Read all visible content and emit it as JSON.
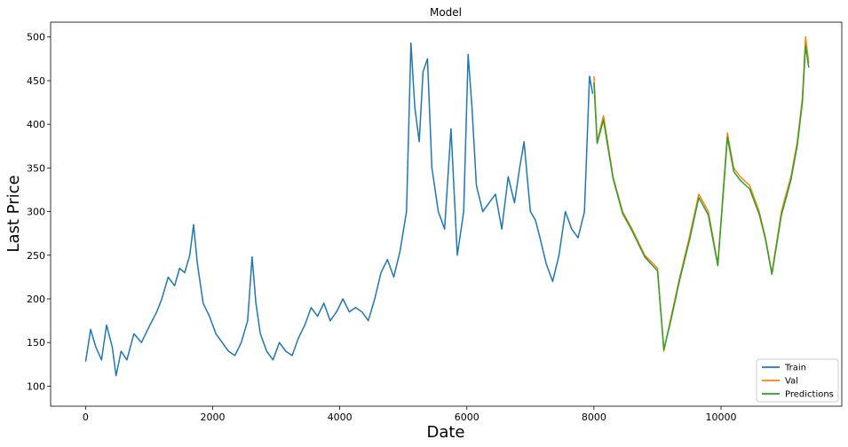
{
  "chart_data": {
    "type": "line",
    "title": "Model",
    "xlabel": "Date",
    "ylabel": "Last Price",
    "xlim": [
      -550,
      11900
    ],
    "ylim": [
      77,
      517
    ],
    "xticks": [
      0,
      2000,
      4000,
      6000,
      8000,
      10000
    ],
    "yticks": [
      100,
      150,
      200,
      250,
      300,
      350,
      400,
      450,
      500
    ],
    "grid": false,
    "legend_position": "lower-right",
    "series": [
      {
        "name": "Train",
        "color": "#1f77b4",
        "x": [
          0,
          80,
          160,
          250,
          330,
          420,
          480,
          560,
          650,
          760,
          880,
          1000,
          1120,
          1200,
          1300,
          1400,
          1480,
          1560,
          1640,
          1700,
          1760,
          1850,
          1950,
          2050,
          2150,
          2250,
          2350,
          2450,
          2550,
          2620,
          2680,
          2750,
          2850,
          2950,
          3050,
          3150,
          3250,
          3350,
          3450,
          3550,
          3650,
          3750,
          3850,
          3950,
          4050,
          4150,
          4250,
          4350,
          4450,
          4550,
          4650,
          4750,
          4850,
          4950,
          5050,
          5120,
          5180,
          5250,
          5310,
          5380,
          5450,
          5550,
          5650,
          5750,
          5850,
          5950,
          6020,
          6080,
          6150,
          6250,
          6350,
          6450,
          6550,
          6650,
          6750,
          6830,
          6900,
          6950,
          7000,
          7080,
          7150,
          7250,
          7350,
          7450,
          7550,
          7650,
          7750,
          7850,
          7930,
          7980
        ],
        "values": [
          128,
          165,
          145,
          130,
          170,
          145,
          112,
          140,
          130,
          160,
          150,
          168,
          185,
          200,
          225,
          215,
          235,
          230,
          250,
          285,
          240,
          195,
          180,
          160,
          150,
          140,
          135,
          150,
          175,
          248,
          195,
          160,
          140,
          130,
          150,
          140,
          135,
          155,
          170,
          190,
          180,
          195,
          175,
          185,
          200,
          185,
          190,
          185,
          175,
          200,
          230,
          245,
          225,
          255,
          300,
          493,
          420,
          380,
          460,
          475,
          350,
          300,
          280,
          395,
          250,
          300,
          480,
          420,
          330,
          300,
          310,
          320,
          280,
          340,
          310,
          350,
          380,
          340,
          300,
          290,
          270,
          240,
          220,
          250,
          300,
          280,
          270,
          300,
          455,
          435
        ]
      },
      {
        "name": "Val",
        "color": "#ff7f0e",
        "x": [
          8000,
          8050,
          8150,
          8300,
          8450,
          8600,
          8800,
          9000,
          9100,
          9200,
          9350,
          9500,
          9650,
          9800,
          9950,
          10100,
          10200,
          10300,
          10450,
          10600,
          10700,
          10800,
          10950,
          11100,
          11200,
          11280,
          11330,
          11380
        ],
        "values": [
          455,
          380,
          410,
          340,
          300,
          280,
          250,
          235,
          140,
          175,
          225,
          270,
          320,
          300,
          240,
          390,
          350,
          340,
          330,
          300,
          270,
          230,
          300,
          340,
          380,
          430,
          500,
          470
        ]
      },
      {
        "name": "Predictions",
        "color": "#2ca02c",
        "x": [
          8000,
          8050,
          8150,
          8300,
          8450,
          8600,
          8800,
          9000,
          9100,
          9200,
          9350,
          9500,
          9650,
          9800,
          9950,
          10100,
          10200,
          10300,
          10450,
          10600,
          10700,
          10800,
          10950,
          11100,
          11200,
          11280,
          11330,
          11380
        ],
        "values": [
          448,
          378,
          405,
          338,
          298,
          278,
          248,
          232,
          142,
          172,
          222,
          266,
          316,
          296,
          238,
          385,
          346,
          336,
          326,
          297,
          268,
          228,
          296,
          336,
          376,
          425,
          490,
          465
        ]
      }
    ]
  }
}
